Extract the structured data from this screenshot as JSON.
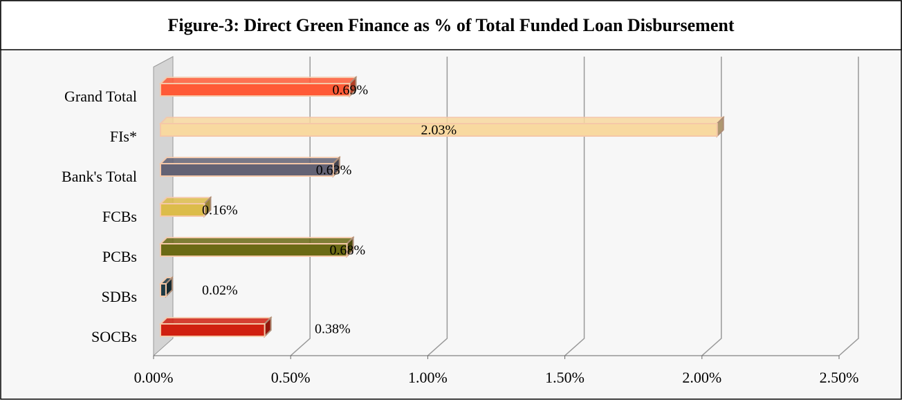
{
  "chart_data": {
    "type": "bar",
    "orientation": "horizontal",
    "title": "Figure-3: Direct Green Finance as % of Total Funded Loan Disbursement",
    "categories": [
      "Grand Total",
      "FIs*",
      "Bank's Total",
      "FCBs",
      "PCBs",
      "SDBs",
      "SOCBs"
    ],
    "values": [
      0.69,
      2.03,
      0.63,
      0.16,
      0.68,
      0.02,
      0.38
    ],
    "value_labels": [
      "0.69%",
      "2.03%",
      "0.63%",
      "0.16%",
      "0.68%",
      "0.02%",
      "0.38%"
    ],
    "colors": [
      "#ff5a36",
      "#f8d9a0",
      "#636274",
      "#dcbc4a",
      "#6b6a14",
      "#1e3a44",
      "#d02010"
    ],
    "xlim": [
      0,
      2.5
    ],
    "xticks": [
      {
        "value": 0,
        "label": "0.00%"
      },
      {
        "value": 0.5,
        "label": "0.50%"
      },
      {
        "value": 1,
        "label": "1.00%"
      },
      {
        "value": 1.5,
        "label": "1.50%"
      },
      {
        "value": 2,
        "label": "2.00%"
      },
      {
        "value": 2.5,
        "label": "2.50%"
      }
    ],
    "grid": true
  }
}
